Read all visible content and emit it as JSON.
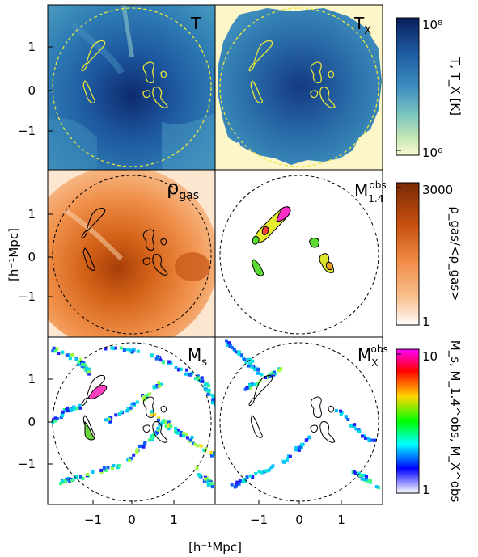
{
  "panels": {
    "temperature": {
      "label": "T",
      "label_color": "#e6e63c"
    },
    "xray_temperature": {
      "label": "T",
      "subscript": "X"
    },
    "gas_density": {
      "label": "ρ",
      "subscript": "gas"
    },
    "radio_mach": {
      "label": "M",
      "subscript": "1.4",
      "superscript": "obs"
    },
    "shock_mach": {
      "label": "M",
      "subscript": "s"
    },
    "xray_mach": {
      "label": "M",
      "subscript": "X",
      "superscript": "obs"
    }
  },
  "axes": {
    "xlabel": "[h⁻¹Mpc]",
    "ylabel": "[h⁻¹Mpc]",
    "xticks": [
      "−1",
      "0",
      "1"
    ],
    "yticks": [
      "1",
      "0",
      "−1"
    ]
  },
  "colorbars": {
    "temperature": {
      "top": "10⁸",
      "bottom": "10⁶",
      "label": "T, T_X [K]",
      "colors": [
        "#0a1e5c",
        "#1e5aa0",
        "#3c8cc0",
        "#7ac4c0",
        "#c8e8b4",
        "#fafad2"
      ]
    },
    "density": {
      "top": "3000",
      "bottom": "1",
      "label": "ρ_gas/<ρ_gas>",
      "colors": [
        "#7a2a05",
        "#c8500f",
        "#f08c46",
        "#f8be8c",
        "#fde6d2",
        "#ffffff"
      ]
    },
    "mach": {
      "top": "10",
      "bottom": "1",
      "label": "M_s, M_1.4^obs, M_X^obs",
      "colors": [
        "#ff00ff",
        "#ff0000",
        "#ffd700",
        "#00ff00",
        "#00ffff",
        "#0000ff",
        "#ffffff"
      ]
    }
  }
}
